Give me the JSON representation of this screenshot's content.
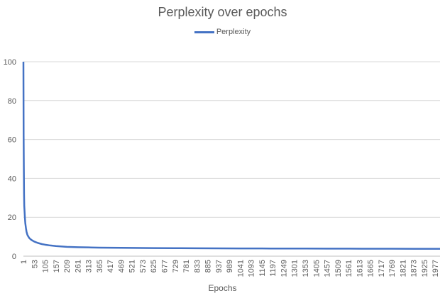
{
  "chart_data": {
    "type": "line",
    "title": "Perplexity over epochs",
    "xlabel": "Epochs",
    "ylabel": "",
    "ylim": [
      0,
      100
    ],
    "yticks": [
      0,
      20,
      40,
      60,
      80,
      100
    ],
    "xlim": [
      1,
      2000
    ],
    "xticks": [
      1,
      53,
      105,
      157,
      209,
      261,
      313,
      365,
      417,
      469,
      521,
      573,
      625,
      677,
      729,
      781,
      833,
      885,
      937,
      989,
      1041,
      1093,
      1145,
      1197,
      1249,
      1301,
      1353,
      1405,
      1457,
      1509,
      1561,
      1613,
      1665,
      1717,
      1769,
      1821,
      1873,
      1925,
      1977
    ],
    "grid": true,
    "legend": "top",
    "series": [
      {
        "name": "Perplexity",
        "color": "#4472c4",
        "x": [
          1,
          2,
          3,
          4,
          5,
          6,
          8,
          10,
          13,
          16,
          20,
          25,
          30,
          40,
          53,
          70,
          90,
          105,
          130,
          157,
          209,
          261,
          313,
          365,
          417,
          521,
          625,
          729,
          833,
          937,
          1041,
          1145,
          1249,
          1353,
          1457,
          1561,
          1665,
          1769,
          1873,
          1977,
          2000
        ],
        "y": [
          100,
          62,
          45,
          32,
          26,
          24,
          20,
          17,
          14.5,
          12.5,
          11,
          10,
          9.2,
          8.3,
          7.5,
          6.8,
          6.2,
          5.9,
          5.5,
          5.2,
          4.8,
          4.6,
          4.5,
          4.4,
          4.35,
          4.25,
          4.15,
          4.1,
          4.05,
          4.0,
          3.98,
          3.95,
          3.92,
          3.9,
          3.88,
          3.86,
          3.84,
          3.82,
          3.8,
          3.8,
          3.8
        ]
      }
    ]
  }
}
